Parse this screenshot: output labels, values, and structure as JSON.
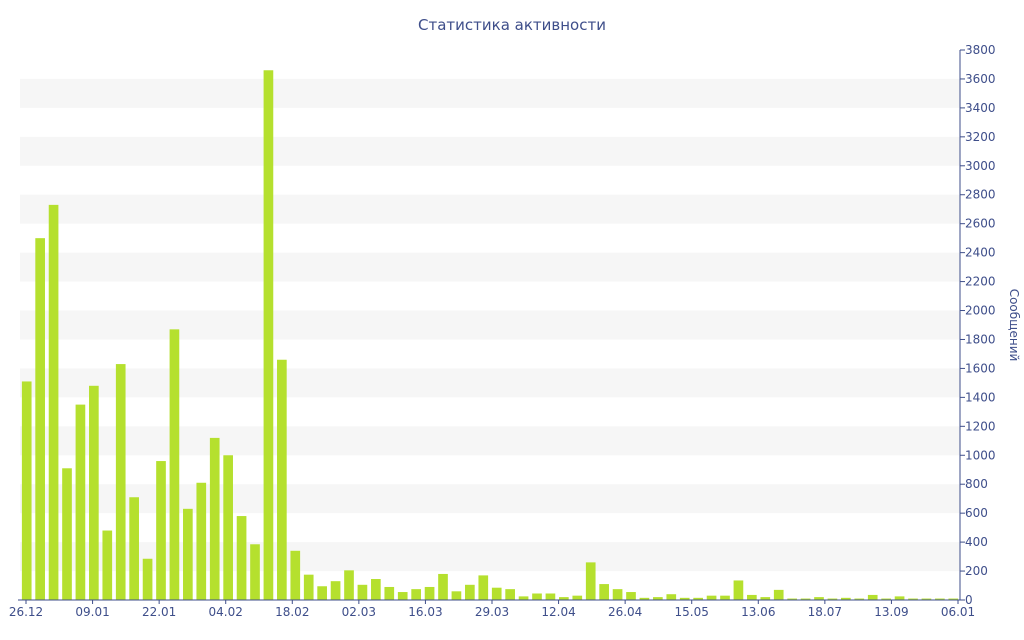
{
  "chart_data": {
    "type": "bar",
    "title": "Статистика активности",
    "ylabel": "Сообщений",
    "xlabel": "",
    "ylim": [
      0,
      3800
    ],
    "y_ticks": [
      0,
      200,
      400,
      600,
      800,
      1000,
      1200,
      1400,
      1600,
      1800,
      2000,
      2200,
      2400,
      2600,
      2800,
      3000,
      3200,
      3400,
      3600,
      3800
    ],
    "x_tick_labels": [
      "26.12",
      "09.01",
      "22.01",
      "04.02",
      "18.02",
      "02.03",
      "16.03",
      "29.03",
      "12.04",
      "26.04",
      "15.05",
      "13.06",
      "18.07",
      "13.09",
      "06.01"
    ],
    "grid": "alternating horizontal bands",
    "bar_color": "#b5e02e",
    "values": [
      1510,
      2500,
      2730,
      910,
      1350,
      1480,
      480,
      1630,
      710,
      285,
      960,
      1870,
      630,
      810,
      1120,
      1000,
      580,
      385,
      3660,
      1660,
      340,
      175,
      95,
      130,
      205,
      105,
      145,
      90,
      55,
      75,
      90,
      180,
      60,
      105,
      170,
      85,
      75,
      25,
      45,
      45,
      20,
      30,
      260,
      110,
      75,
      55,
      15,
      20,
      40,
      15,
      15,
      30,
      30,
      135,
      35,
      20,
      70,
      10,
      10,
      20,
      10,
      15,
      10,
      35,
      10,
      25,
      10,
      10,
      10,
      10
    ]
  }
}
